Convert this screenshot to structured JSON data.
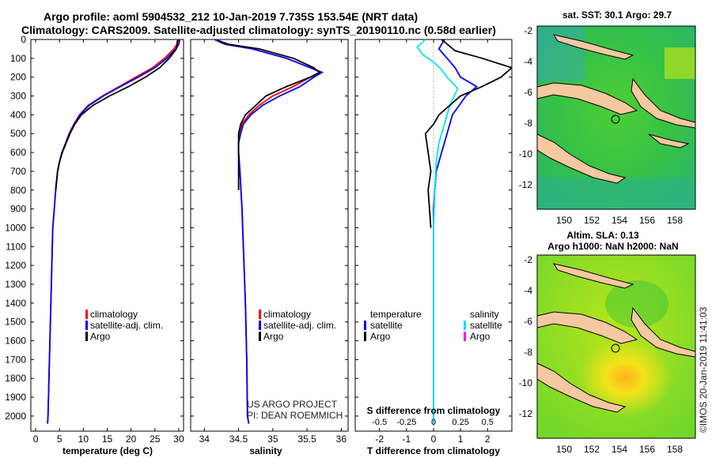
{
  "title_line1": "Argo profile: aoml 5904532_212 10-Jan-2019 7.735S 153.54E (NRT data)",
  "title_line2": "Climatology: CARS2009. Satellite-adjusted climatology: synTS_20190110.nc (0.58d earlier)",
  "colors": {
    "climatology": "#ff0000",
    "satellite": "#0000ff",
    "argo": "#000000",
    "satellite_T": "#00e5ee",
    "argo_S": "#ff00ff",
    "land": "#f5c8a0"
  },
  "chart_data": [
    {
      "type": "line",
      "id": "temperature",
      "xlabel": "temperature (deg C)",
      "ylabel": "",
      "xlim": [
        -1,
        31
      ],
      "ylim": [
        2080,
        0
      ],
      "y_reversed": true,
      "xticks": [
        0,
        5,
        10,
        15,
        20,
        25,
        30
      ],
      "yticks": [
        0,
        100,
        200,
        300,
        400,
        500,
        600,
        700,
        800,
        900,
        1000,
        1100,
        1200,
        1300,
        1400,
        1500,
        1600,
        1700,
        1800,
        1900,
        2000
      ],
      "legend": [
        "climatology",
        "satellite-adj. clim.",
        "Argo"
      ],
      "series": [
        {
          "name": "climatology",
          "x": [
            29.8,
            29.6,
            29.0,
            27.0,
            24.5,
            21.0,
            17.5,
            14.0,
            11.0,
            9.2,
            8.0,
            7.0,
            6.3,
            5.5,
            5.0,
            4.6,
            4.2,
            3.9,
            3.6,
            3.4,
            3.2,
            3.0,
            2.8,
            2.7,
            2.6,
            2.5
          ],
          "y": [
            0,
            25,
            50,
            100,
            150,
            200,
            250,
            300,
            350,
            400,
            450,
            500,
            550,
            600,
            650,
            700,
            800,
            900,
            1000,
            1200,
            1400,
            1600,
            1800,
            1900,
            2000,
            2040
          ]
        },
        {
          "name": "satellite-adj. clim.",
          "x": [
            30.2,
            30.0,
            29.4,
            27.5,
            25.0,
            21.5,
            17.8,
            14.2,
            11.2,
            9.3,
            8.1,
            7.1,
            6.3,
            5.5,
            5.0,
            4.6,
            4.2,
            3.9,
            3.6,
            3.4,
            3.2,
            3.0,
            2.8,
            2.7,
            2.6,
            2.5
          ],
          "y": [
            0,
            25,
            50,
            100,
            150,
            200,
            250,
            300,
            350,
            400,
            450,
            500,
            550,
            600,
            650,
            700,
            800,
            900,
            1000,
            1200,
            1400,
            1600,
            1800,
            1900,
            2000,
            2040
          ]
        },
        {
          "name": "Argo",
          "x": [
            29.7,
            29.7,
            29.5,
            28.0,
            26.0,
            23.0,
            19.5,
            15.5,
            12.0,
            9.6,
            8.2,
            7.2,
            6.4,
            5.6,
            5.0,
            4.6,
            4.2
          ],
          "y": [
            5,
            25,
            50,
            100,
            150,
            200,
            250,
            300,
            350,
            400,
            450,
            500,
            550,
            600,
            650,
            700,
            800
          ]
        }
      ]
    },
    {
      "type": "line",
      "id": "salinity",
      "xlabel": "salinity",
      "ylabel": "",
      "xlim": [
        33.8,
        36.1
      ],
      "ylim": [
        2080,
        0
      ],
      "y_reversed": true,
      "xticks": [
        34,
        34.5,
        35,
        35.5,
        36
      ],
      "legend": [
        "climatology",
        "satellite-adj. clim.",
        "Argo"
      ],
      "annotation": [
        "US ARGO PROJECT",
        "PI: DEAN ROEMMICH"
      ],
      "series": [
        {
          "name": "climatology",
          "x": [
            34.15,
            34.3,
            34.7,
            35.2,
            35.55,
            35.7,
            35.55,
            35.3,
            35.0,
            34.8,
            34.65,
            34.55,
            34.52,
            34.5,
            34.5,
            34.52,
            34.55,
            34.57,
            34.6,
            34.62,
            34.63,
            34.65
          ],
          "y": [
            0,
            25,
            50,
            100,
            150,
            175,
            200,
            250,
            300,
            350,
            400,
            450,
            500,
            550,
            600,
            700,
            900,
            1100,
            1400,
            1700,
            2000,
            2040
          ]
        },
        {
          "name": "satellite-adj. clim.",
          "x": [
            34.15,
            34.3,
            34.7,
            35.2,
            35.55,
            35.72,
            35.6,
            35.4,
            35.1,
            34.85,
            34.68,
            34.57,
            34.53,
            34.5,
            34.5,
            34.52,
            34.55,
            34.57,
            34.6,
            34.62,
            34.63,
            34.65
          ],
          "y": [
            0,
            25,
            50,
            100,
            150,
            175,
            200,
            250,
            300,
            350,
            400,
            450,
            500,
            550,
            600,
            700,
            900,
            1100,
            1400,
            1700,
            2000,
            2040
          ]
        },
        {
          "name": "Argo",
          "x": [
            34.2,
            34.35,
            34.8,
            35.3,
            35.6,
            35.68,
            35.55,
            35.2,
            34.9,
            34.75,
            34.6,
            34.53,
            34.5,
            34.5,
            34.5
          ],
          "y": [
            5,
            25,
            50,
            100,
            150,
            175,
            200,
            250,
            300,
            350,
            400,
            450,
            500,
            600,
            800
          ]
        }
      ]
    },
    {
      "type": "line",
      "id": "difference",
      "xlabel": "T difference from climatology",
      "xlabel_top": "S difference from climatology",
      "xlim": [
        -2.9,
        2.9
      ],
      "ylim": [
        2080,
        0
      ],
      "y_reversed": true,
      "xticks": [
        -2,
        -1,
        0,
        1,
        2
      ],
      "s_ticks": [
        "-0.5",
        "-0.25",
        "0",
        "0.25",
        "0.5"
      ],
      "s_ticks_pos": [
        -2,
        -1,
        0,
        1,
        2
      ],
      "legend_temperature": {
        "title": "temperature",
        "items": [
          "satellite",
          "Argo"
        ]
      },
      "legend_salinity": {
        "title": "salinity",
        "items": [
          "satellite",
          "Argo"
        ]
      },
      "series": [
        {
          "name": "T satellite",
          "x": [
            0.4,
            0.2,
            0.5,
            0.8,
            1.0,
            1.6,
            1.2,
            0.7,
            0.5,
            0.3,
            0.1,
            0.05,
            0.0,
            0.0,
            0.0,
            0.0
          ],
          "y": [
            0,
            50,
            100,
            150,
            200,
            250,
            300,
            400,
            500,
            600,
            700,
            800,
            900,
            1100,
            1500,
            2040
          ]
        },
        {
          "name": "S satellite",
          "x": [
            -0.3,
            -0.6,
            -0.4,
            0.0,
            0.3,
            0.5,
            0.9,
            0.6,
            0.4,
            0.2,
            0.1,
            0.05,
            0.0,
            0.0,
            0.0
          ],
          "y": [
            0,
            40,
            80,
            120,
            160,
            200,
            260,
            350,
            450,
            550,
            650,
            800,
            1000,
            1500,
            2040
          ]
        },
        {
          "name": "T Argo",
          "x": [
            0.3,
            0.8,
            1.8,
            2.9,
            2.5,
            1.8,
            1.0,
            0.6,
            0.2,
            0.0,
            -0.3,
            -0.2,
            -0.1,
            -0.2,
            -0.1
          ],
          "y": [
            0,
            60,
            100,
            150,
            200,
            250,
            300,
            350,
            400,
            450,
            500,
            600,
            700,
            800,
            1000
          ]
        }
      ]
    }
  ],
  "maps": [
    {
      "id": "sst",
      "title": "sat. SST: 30.1 Argo: 29.7",
      "xticks": [
        "150",
        "152",
        "154",
        "156",
        "158"
      ],
      "yticks": [
        "-2",
        "-4",
        "-6",
        "-8",
        "-10",
        "-12"
      ]
    },
    {
      "id": "sla",
      "title_line1": "Altim. SLA: 0.13",
      "title_line2": "Argo h1000: NaN h2000: NaN",
      "xticks": [
        "150",
        "152",
        "154",
        "156",
        "158"
      ],
      "yticks": [
        "-2",
        "-4",
        "-6",
        "-8",
        "-10",
        "-12"
      ]
    }
  ],
  "credit": "©IMOS 20-Jan-2019 11:41:03"
}
